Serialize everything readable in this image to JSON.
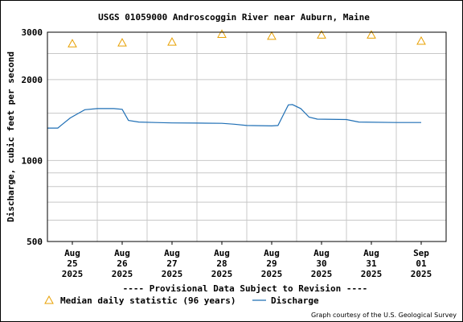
{
  "chart_data": {
    "type": "line",
    "title": "USGS 01059000 Androscoggin River near Auburn, Maine",
    "ylabel": "Discharge, cubic feet per second",
    "xlabel": "",
    "y_scale": "log",
    "ylim": [
      500,
      3000
    ],
    "y_ticks": [
      {
        "value": 500,
        "label": "500"
      },
      {
        "value": 1000,
        "label": "1000"
      },
      {
        "value": 2000,
        "label": "2000"
      },
      {
        "value": 3000,
        "label": "3000"
      }
    ],
    "y_minor_gridlines": [
      600,
      700,
      800,
      900,
      1500,
      2500
    ],
    "xlim": [
      "2025-08-24T12:00",
      "2025-09-01T12:00"
    ],
    "x_ticks": [
      {
        "date": "2025-08-25",
        "label": [
          "Aug",
          "25",
          "2025"
        ]
      },
      {
        "date": "2025-08-26",
        "label": [
          "Aug",
          "26",
          "2025"
        ]
      },
      {
        "date": "2025-08-27",
        "label": [
          "Aug",
          "27",
          "2025"
        ]
      },
      {
        "date": "2025-08-28",
        "label": [
          "Aug",
          "28",
          "2025"
        ]
      },
      {
        "date": "2025-08-29",
        "label": [
          "Aug",
          "29",
          "2025"
        ]
      },
      {
        "date": "2025-08-30",
        "label": [
          "Aug",
          "30",
          "2025"
        ]
      },
      {
        "date": "2025-08-31",
        "label": [
          "Aug",
          "31",
          "2025"
        ]
      },
      {
        "date": "2025-09-01",
        "label": [
          "Sep",
          "01",
          "2025"
        ]
      }
    ],
    "x_day_boundaries": [
      "2025-08-25T12:00",
      "2025-08-26T12:00",
      "2025-08-27T12:00",
      "2025-08-28T12:00",
      "2025-08-29T12:00",
      "2025-08-30T12:00",
      "2025-08-31T12:00"
    ],
    "grid": true,
    "series": [
      {
        "name": "Median daily statistic (96 years)",
        "marker": "triangle",
        "color": "#e8a000",
        "points": [
          {
            "x": "2025-08-25",
            "y": 2720
          },
          {
            "x": "2025-08-26",
            "y": 2740
          },
          {
            "x": "2025-08-27",
            "y": 2760
          },
          {
            "x": "2025-08-28",
            "y": 2950
          },
          {
            "x": "2025-08-29",
            "y": 2900
          },
          {
            "x": "2025-08-30",
            "y": 2930
          },
          {
            "x": "2025-08-31",
            "y": 2930
          },
          {
            "x": "2025-09-01",
            "y": 2780
          }
        ]
      },
      {
        "name": "Discharge",
        "marker": "line",
        "color": "#1f6fb5",
        "points": [
          {
            "x": "2025-08-24T12:00",
            "y": 1320
          },
          {
            "x": "2025-08-24T17:00",
            "y": 1320
          },
          {
            "x": "2025-08-24T19:00",
            "y": 1360
          },
          {
            "x": "2025-08-24T23:00",
            "y": 1440
          },
          {
            "x": "2025-08-25T03:00",
            "y": 1500
          },
          {
            "x": "2025-08-25T06:00",
            "y": 1545
          },
          {
            "x": "2025-08-25T12:00",
            "y": 1560
          },
          {
            "x": "2025-08-25T20:00",
            "y": 1560
          },
          {
            "x": "2025-08-26T00:00",
            "y": 1550
          },
          {
            "x": "2025-08-26T03:00",
            "y": 1410
          },
          {
            "x": "2025-08-26T08:00",
            "y": 1390
          },
          {
            "x": "2025-08-26T16:00",
            "y": 1385
          },
          {
            "x": "2025-08-27T00:00",
            "y": 1380
          },
          {
            "x": "2025-08-27T12:00",
            "y": 1378
          },
          {
            "x": "2025-08-28T00:00",
            "y": 1375
          },
          {
            "x": "2025-08-28T06:00",
            "y": 1365
          },
          {
            "x": "2025-08-28T12:00",
            "y": 1350
          },
          {
            "x": "2025-08-29T00:00",
            "y": 1345
          },
          {
            "x": "2025-08-29T03:00",
            "y": 1350
          },
          {
            "x": "2025-08-29T06:00",
            "y": 1500
          },
          {
            "x": "2025-08-29T08:00",
            "y": 1610
          },
          {
            "x": "2025-08-29T10:00",
            "y": 1615
          },
          {
            "x": "2025-08-29T14:00",
            "y": 1560
          },
          {
            "x": "2025-08-29T18:00",
            "y": 1450
          },
          {
            "x": "2025-08-29T22:00",
            "y": 1425
          },
          {
            "x": "2025-08-30T12:00",
            "y": 1420
          },
          {
            "x": "2025-08-30T18:00",
            "y": 1390
          },
          {
            "x": "2025-08-31T12:00",
            "y": 1385
          },
          {
            "x": "2025-09-01T00:00",
            "y": 1385
          }
        ]
      }
    ],
    "legend": {
      "placement": "bottom",
      "items": [
        "Median daily statistic (96 years)",
        "Discharge"
      ]
    },
    "annotations": {
      "provisional": "---- Provisional Data Subject to Revision ----",
      "credit": "Graph courtesy of the U.S. Geological Survey"
    }
  },
  "colors": {
    "grid": "#c8c8c8",
    "provisional": "#cc0000",
    "median_marker": "#e8a000",
    "discharge_line": "#1f6fb5"
  }
}
